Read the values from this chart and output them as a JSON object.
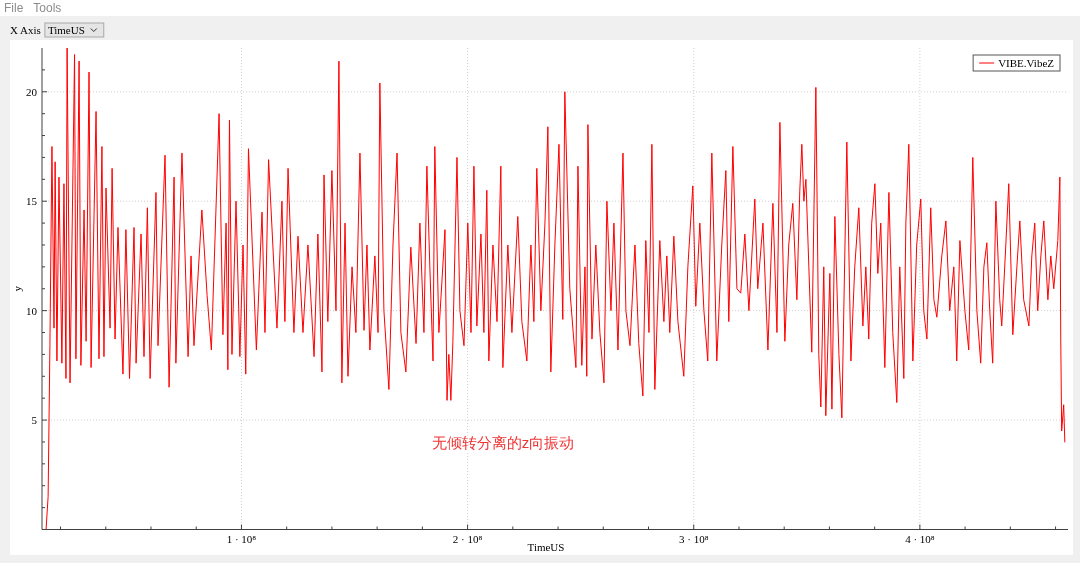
{
  "chart_data": {
    "type": "line",
    "xlabel": "TimeUS",
    "ylabel": "y",
    "x": [
      13600000.0,
      14500000.0,
      15300000.0,
      16200000.0,
      17100000.0,
      17600000.0,
      18400000.0,
      19300000.0,
      20600000.0,
      21500000.0,
      22400000.0,
      22900000.0,
      24200000.0,
      26200000.0,
      26800000.0,
      28200000.0,
      29000000.0,
      30400000.0,
      31300000.0,
      32600000.0,
      33500000.0,
      35700000.0,
      37000000.0,
      38300000.0,
      39200000.0,
      40100000.0,
      41900000.0,
      42800000.0,
      44100000.0,
      45400000.0,
      47600000.0,
      48900000.0,
      50500000.0,
      52500000.0,
      53400000.0,
      55600000.0,
      56900000.0,
      58400000.0,
      59600000.0,
      62200000.0,
      63100000.0,
      66200000.0,
      68000000.0,
      70200000.0,
      71000000.0,
      73700000.0,
      76400000.0,
      77700000.0,
      79000000.0,
      82500000.0,
      84800000.0,
      86700000.0,
      90100000.0,
      91800000.0,
      93200000.0,
      94000000.0,
      94700000.0,
      95800000.0,
      97600000.0,
      99300000.0,
      100700000.0,
      101900000.0,
      103100000.0,
      106600000.0,
      109100000.0,
      110400000.0,
      112000000.0,
      115700000.0,
      117900000.0,
      119200000.0,
      120600000.0,
      123200000.0,
      125000000.0,
      127200000.0,
      129400000.0,
      132100000.0,
      133800000.0,
      135600000.0,
      136500000.0,
      138200000.0,
      140000000.0,
      141800000.0,
      143100000.0,
      144400000.0,
      145800000.0,
      147100000.0,
      148900000.0,
      150600000.0,
      152400000.0,
      154200000.0,
      155500000.0,
      156800000.0,
      159000000.0,
      160400000.0,
      161200000.0,
      163000000.0,
      165200000.0,
      167000000.0,
      168800000.0,
      170500000.0,
      172700000.0,
      174900000.0,
      177200000.0,
      178900000.0,
      180700000.0,
      182000000.0,
      183300000.0,
      184700000.0,
      185500000.0,
      187300000.0,
      190000000.0,
      190900000.0,
      191700000.0,
      192600000.0,
      193500000.0,
      195300000.0,
      196600000.0,
      198400000.0,
      200100000.0,
      201500000.0,
      202800000.0,
      204100000.0,
      205900000.0,
      207200000.0,
      208500000.0,
      209400000.0,
      211200000.0,
      213000000.0,
      214700000.0,
      215600000.0,
      217800000.0,
      219600000.0,
      222200000.0,
      224000000.0,
      226200000.0,
      228000000.0,
      229300000.0,
      230600000.0,
      232400000.0,
      234200000.0,
      235500000.0,
      236800000.0,
      238600000.0,
      240400000.0,
      242100000.0,
      243000000.0,
      245200000.0,
      247900000.0,
      248800000.0,
      250500000.0,
      251900000.0,
      252700000.0,
      253200000.0,
      255000000.0,
      256700000.0,
      258500000.0,
      260300000.0,
      261600000.0,
      263400000.0,
      264700000.0,
      266500000.0,
      268700000.0,
      270000000.0,
      271800000.0,
      274000000.0,
      275700000.0,
      277500000.0,
      278800000.0,
      280200000.0,
      281500000.0,
      282800000.0,
      285000000.0,
      286800000.0,
      288100000.0,
      289400000.0,
      291200000.0,
      293000000.0,
      295600000.0,
      297400000.0,
      299600000.0,
      300900000.0,
      302700000.0,
      304500000.0,
      306200000.0,
      308000000.0,
      310200000.0,
      312400000.0,
      314200000.0,
      315500000.0,
      317300000.0,
      319100000.0,
      320800000.0,
      322600000.0,
      324400000.0,
      327000000.0,
      328300000.0,
      330600000.0,
      332800000.0,
      335000000.0,
      336800000.0,
      338100000.0,
      340300000.0,
      342000000.0,
      343800000.0,
      345600000.0,
      346900000.0,
      347800000.0,
      348700000.0,
      349600000.0,
      350900000.0,
      352200000.0,
      354000000.0,
      355300000.0,
      356200000.0,
      357500000.0,
      358400000.0,
      360200000.0,
      361100000.0,
      362400000.0,
      364200000.0,
      365500000.0,
      367700000.0,
      369500000.0,
      371200000.0,
      373000000.0,
      374800000.0,
      376100000.0,
      377400000.0,
      378700000.0,
      380100000.0,
      381400000.0,
      382700000.0,
      384500000.0,
      386300000.0,
      388000000.0,
      389800000.0,
      391100000.0,
      392900000.0,
      393800000.0,
      395100000.0,
      396900000.0,
      398600000.0,
      400400000.0,
      401700000.0,
      403100000.0,
      404800000.0,
      406200000.0,
      407500000.0,
      409700000.0,
      411500000.0,
      413200000.0,
      415000000.0,
      416300000.0,
      417700000.0,
      419900000.0,
      421600000.0,
      423400000.0,
      425200000.0,
      426900000.0,
      428300000.0,
      429600000.0,
      430900000.0,
      432200000.0,
      433600000.0,
      435300000.0,
      436200000.0,
      438000000.0,
      439300000.0,
      441100000.0,
      442900000.0,
      444200000.0,
      445900000.0,
      448200000.0,
      449500000.0,
      450800000.0,
      452100000.0,
      453500000.0,
      454800000.0,
      456600000.0,
      457900000.0,
      459200000.0,
      461000000.0,
      461900000.0,
      462300000.0,
      462700000.0,
      463600000.0,
      464100000.0
    ],
    "series": [
      {
        "name": "VIBE.VibeZ",
        "color": "#ff0000",
        "values": [
          0.0,
          1.5,
          8.4,
          17.5,
          9.2,
          16.8,
          7.7,
          16.1,
          7.6,
          15.8,
          6.9,
          22.0,
          6.7,
          21.7,
          7.8,
          21.4,
          7.5,
          14.6,
          8.6,
          20.9,
          7.4,
          19.1,
          7.8,
          17.5,
          7.9,
          15.6,
          9.2,
          16.5,
          8.7,
          13.8,
          7.1,
          13.7,
          6.9,
          13.8,
          7.6,
          13.5,
          7.9,
          14.7,
          6.9,
          15.4,
          8.4,
          17.1,
          6.5,
          16.1,
          7.6,
          17.2,
          7.9,
          12.5,
          8.4,
          14.6,
          10.7,
          8.2,
          19.0,
          8.9,
          14.0,
          7.3,
          18.7,
          8.0,
          15.0,
          7.9,
          13.0,
          7.1,
          17.4,
          8.2,
          14.5,
          9.0,
          16.9,
          9.2,
          15.0,
          9.5,
          16.5,
          9.0,
          13.4,
          9.0,
          13.0,
          7.9,
          13.5,
          7.2,
          16.2,
          9.5,
          16.4,
          10.0,
          21.4,
          6.7,
          14.0,
          7.0,
          12.0,
          9.0,
          17.2,
          9.1,
          13.0,
          8.2,
          12.5,
          9.0,
          20.4,
          10.0,
          6.4,
          13.0,
          17.2,
          9.0,
          7.2,
          12.9,
          8.5,
          14.0,
          9.0,
          16.6,
          12.0,
          7.7,
          17.5,
          9.0,
          13.7,
          5.9,
          8.0,
          5.9,
          8.6,
          17.0,
          10.0,
          8.4,
          14.0,
          9.0,
          16.6,
          9.3,
          13.5,
          9.0,
          15.5,
          7.7,
          13.0,
          9.5,
          16.6,
          7.4,
          13.0,
          9.0,
          14.3,
          9.5,
          7.7,
          13.0,
          9.5,
          16.5,
          10.0,
          14.0,
          18.4,
          7.2,
          13.0,
          17.6,
          9.6,
          20.0,
          11.0,
          7.4,
          16.6,
          7.5,
          12.0,
          7.0,
          18.5,
          8.7,
          13.0,
          9.0,
          6.7,
          15.0,
          10.0,
          14.0,
          8.2,
          17.2,
          10.0,
          8.4,
          13.0,
          8.5,
          6.1,
          13.2,
          9.0,
          17.6,
          6.4,
          13.2,
          9.5,
          12.5,
          9.0,
          13.4,
          9.5,
          7.0,
          12.0,
          15.7,
          10.2,
          14.0,
          10.0,
          7.7,
          17.2,
          7.7,
          13.0,
          16.4,
          9.5,
          17.5,
          11.0,
          10.8,
          13.5,
          10.0,
          15.1,
          11.0,
          14.0,
          8.2,
          14.9,
          9.0,
          18.6,
          8.6,
          13.0,
          14.9,
          10.5,
          15.5,
          17.6,
          15.0,
          16.0,
          12.0,
          8.1,
          20.2,
          8.0,
          5.6,
          12.0,
          5.2,
          11.7,
          5.5,
          14.3,
          8.0,
          5.1,
          17.7,
          7.7,
          12.0,
          14.7,
          9.3,
          12.0,
          8.7,
          14.0,
          15.8,
          11.7,
          14.0,
          7.4,
          15.4,
          9.0,
          5.8,
          12.0,
          6.9,
          14.0,
          17.6,
          7.7,
          13.0,
          15.1,
          10.0,
          8.7,
          14.7,
          10.5,
          9.7,
          12.5,
          14.1,
          10.0,
          12.0,
          7.7,
          13.2,
          10.0,
          8.2,
          17.0,
          10.0,
          7.6,
          12.0,
          13.1,
          10.0,
          7.6,
          15.0,
          10.5,
          9.3,
          13.0,
          15.8,
          8.9,
          12.0,
          14.1,
          10.5,
          9.3,
          12.5,
          14.0,
          10.0,
          12.5,
          14.1,
          10.5,
          12.5,
          11.0,
          13.2,
          16.1,
          8.7,
          4.5,
          5.7,
          4.0
        ]
      }
    ],
    "xlim": [
      11800000.0,
      465500000.0
    ],
    "ylim": [
      0,
      22
    ],
    "xticks": [
      {
        "value": 20000000.0,
        "label": null
      },
      {
        "value": 40000000.0,
        "label": null
      },
      {
        "value": 60000000.0,
        "label": null
      },
      {
        "value": 80000000.0,
        "label": null
      },
      {
        "value": 100000000.0,
        "label": "1 · 10⁸"
      },
      {
        "value": 120000000.0,
        "label": null
      },
      {
        "value": 140000000.0,
        "label": null
      },
      {
        "value": 160000000.0,
        "label": null
      },
      {
        "value": 180000000.0,
        "label": null
      },
      {
        "value": 200000000.0,
        "label": "2 · 10⁸"
      },
      {
        "value": 220000000.0,
        "label": null
      },
      {
        "value": 240000000.0,
        "label": null
      },
      {
        "value": 260000000.0,
        "label": null
      },
      {
        "value": 280000000.0,
        "label": null
      },
      {
        "value": 300000000.0,
        "label": "3 · 10⁸"
      },
      {
        "value": 320000000.0,
        "label": null
      },
      {
        "value": 340000000.0,
        "label": null
      },
      {
        "value": 360000000.0,
        "label": null
      },
      {
        "value": 380000000.0,
        "label": null
      },
      {
        "value": 400000000.0,
        "label": "4 · 10⁸"
      },
      {
        "value": 420000000.0,
        "label": null
      },
      {
        "value": 440000000.0,
        "label": null
      },
      {
        "value": 460000000.0,
        "label": null
      }
    ],
    "yticks": [
      {
        "value": 1,
        "label": null
      },
      {
        "value": 2,
        "label": null
      },
      {
        "value": 3,
        "label": null
      },
      {
        "value": 4,
        "label": null
      },
      5,
      {
        "value": 6,
        "label": null
      },
      {
        "value": 7,
        "label": null
      },
      {
        "value": 8,
        "label": null
      },
      {
        "value": 9,
        "label": null
      },
      10,
      {
        "value": 11,
        "label": null
      },
      {
        "value": 12,
        "label": null
      },
      {
        "value": 13,
        "label": null
      },
      {
        "value": 14,
        "label": null
      },
      15,
      {
        "value": 16,
        "label": null
      },
      {
        "value": 17,
        "label": null
      },
      {
        "value": 18,
        "label": null
      },
      {
        "value": 19,
        "label": null
      },
      20,
      {
        "value": 21,
        "label": null
      }
    ],
    "grid": true,
    "legend": "top right",
    "annotations": [
      "File",
      "Tools",
      "X Axis",
      "TimeUS",
      "无倾转分离的z向振动"
    ]
  }
}
